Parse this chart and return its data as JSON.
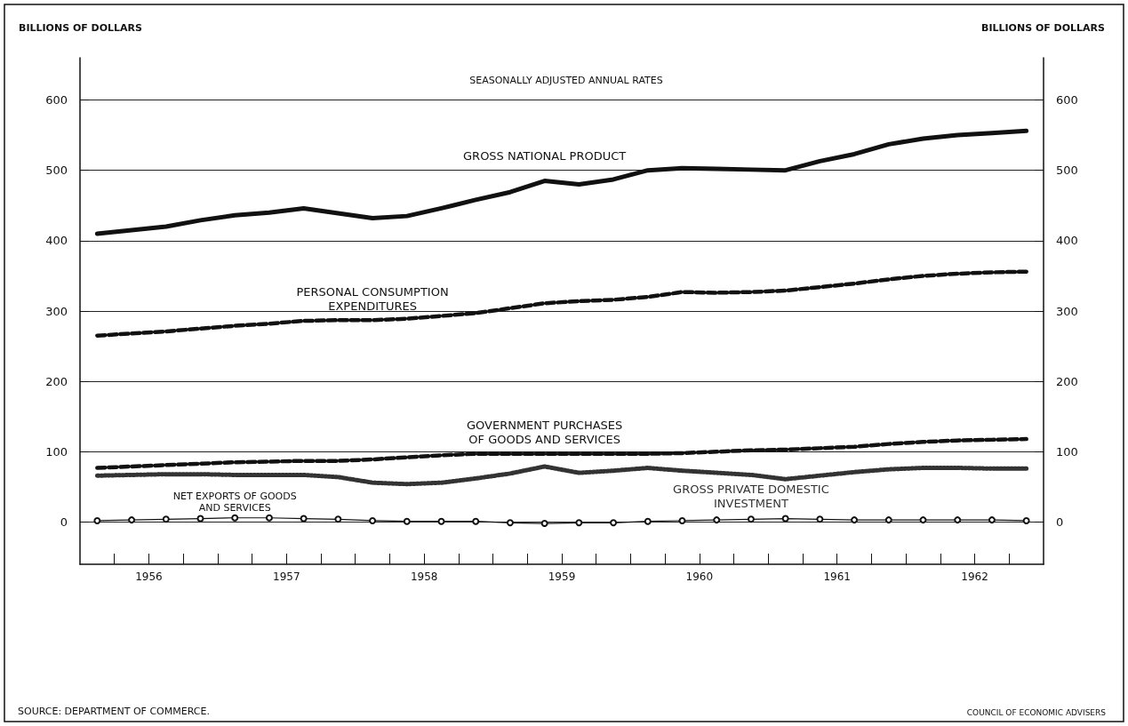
{
  "chart_data": {
    "type": "line",
    "title": "SEASONALLY ADJUSTED ANNUAL RATES",
    "ylabel": "BILLIONS OF DOLLARS",
    "y2label": "BILLIONS OF DOLLARS",
    "x": [
      1956.125,
      1956.375,
      1956.625,
      1956.875,
      1957.125,
      1957.375,
      1957.625,
      1957.875,
      1958.125,
      1958.375,
      1958.625,
      1958.875,
      1959.125,
      1959.375,
      1959.625,
      1959.875,
      1960.125,
      1960.375,
      1960.625,
      1960.875,
      1961.125,
      1961.375,
      1961.625,
      1961.875,
      1962.125,
      1962.375,
      1962.625,
      1962.875
    ],
    "series": [
      {
        "name": "GROSS NATIONAL PRODUCT",
        "color": "#111111",
        "line_style": "solid",
        "marker": "none",
        "values": [
          410,
          415,
          420,
          429,
          436,
          440,
          446,
          439,
          432,
          435,
          446,
          458,
          469,
          485,
          480,
          487,
          500,
          503,
          502,
          501,
          500,
          513,
          523,
          537,
          545,
          550,
          553,
          556
        ]
      },
      {
        "name": "PERSONAL CONSUMPTION\nEXPENDITURES",
        "color": "#111111",
        "line_style": "dashed",
        "marker": "none",
        "values": [
          265,
          268,
          271,
          275,
          279,
          282,
          286,
          287,
          287,
          289,
          293,
          297,
          304,
          311,
          314,
          316,
          320,
          327,
          326,
          327,
          329,
          334,
          339,
          345,
          350,
          353,
          355,
          356
        ]
      },
      {
        "name": "GOVERNMENT PURCHASES\nOF GOODS AND SERVICES",
        "color": "#111111",
        "line_style": "dashed",
        "marker": "none",
        "values": [
          77,
          79,
          81,
          83,
          85,
          86,
          87,
          87,
          89,
          92,
          95,
          97,
          97,
          97,
          97,
          97,
          97,
          98,
          100,
          102,
          103,
          105,
          107,
          111,
          114,
          116,
          117,
          118
        ]
      },
      {
        "name": "GROSS PRIVATE DOMESTIC\nINVESTMENT",
        "color": "#333333",
        "line_style": "dotted",
        "marker": "none",
        "values": [
          66,
          67,
          68,
          68,
          67,
          67,
          67,
          64,
          56,
          54,
          56,
          62,
          69,
          79,
          70,
          73,
          77,
          73,
          70,
          67,
          61,
          66,
          71,
          75,
          77,
          77,
          76,
          76
        ]
      },
      {
        "name": "NET EXPORTS OF GOODS\nAND SERVICES",
        "color": "#111111",
        "line_style": "solid",
        "marker": "circle",
        "values": [
          2,
          3,
          4,
          5,
          6,
          6,
          5,
          4,
          2,
          1,
          1,
          1,
          -1,
          -2,
          -1,
          -1,
          1,
          2,
          3,
          4,
          5,
          4,
          3,
          3,
          3,
          3,
          3,
          2
        ]
      }
    ],
    "xlim": [
      1956,
      1963
    ],
    "xticks": [
      {
        "value": 1956.25,
        "label": null
      },
      {
        "value": 1956.5,
        "label": "1956"
      },
      {
        "value": 1956.75,
        "label": null
      },
      {
        "value": 1957,
        "label": null
      },
      {
        "value": 1957.25,
        "label": null
      },
      {
        "value": 1957.5,
        "label": "1957"
      },
      {
        "value": 1957.75,
        "label": null
      },
      {
        "value": 1958,
        "label": null
      },
      {
        "value": 1958.25,
        "label": null
      },
      {
        "value": 1958.5,
        "label": "1958"
      },
      {
        "value": 1958.75,
        "label": null
      },
      {
        "value": 1959,
        "label": null
      },
      {
        "value": 1959.25,
        "label": null
      },
      {
        "value": 1959.5,
        "label": "1959"
      },
      {
        "value": 1959.75,
        "label": null
      },
      {
        "value": 1960,
        "label": null
      },
      {
        "value": 1960.25,
        "label": null
      },
      {
        "value": 1960.5,
        "label": "1960"
      },
      {
        "value": 1960.75,
        "label": null
      },
      {
        "value": 1961,
        "label": null
      },
      {
        "value": 1961.25,
        "label": null
      },
      {
        "value": 1961.5,
        "label": "1961"
      },
      {
        "value": 1961.75,
        "label": null
      },
      {
        "value": 1962,
        "label": null
      },
      {
        "value": 1962.25,
        "label": null
      },
      {
        "value": 1962.5,
        "label": "1962"
      },
      {
        "value": 1962.75,
        "label": null
      }
    ],
    "ylim": [
      -60,
      660
    ],
    "yticks": [
      0,
      100,
      200,
      300,
      400,
      500,
      600
    ],
    "y2lim": [
      -60,
      660
    ],
    "y2ticks": [
      0,
      100,
      200,
      300,
      400,
      500,
      600
    ],
    "grid": "y",
    "legend": false,
    "annotations": [
      "SOURCE: DEPARTMENT OF COMMERCE.",
      "COUNCIL OF ECONOMIC ADVISERS"
    ]
  }
}
